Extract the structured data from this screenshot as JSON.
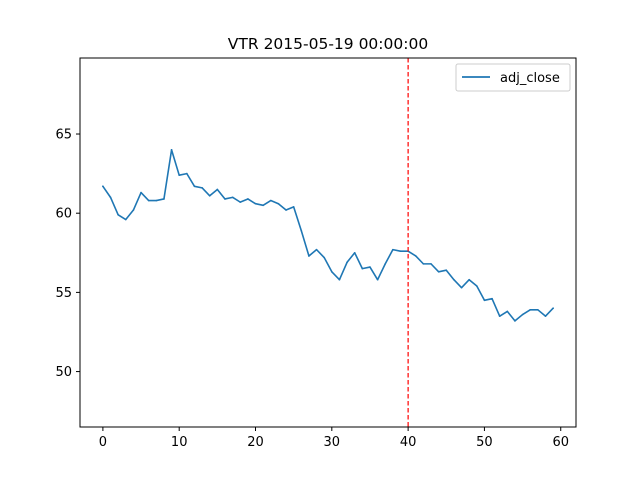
{
  "chart_data": {
    "type": "line",
    "title": "VTR 2015-05-19 00:00:00",
    "xlabel": "",
    "ylabel": "",
    "xlim": [
      -3,
      62
    ],
    "ylim": [
      46.5,
      69.8
    ],
    "xticks": [
      0,
      10,
      20,
      30,
      40,
      50,
      60
    ],
    "yticks": [
      50,
      55,
      60,
      65
    ],
    "xtick_labels": [
      "0",
      "10",
      "20",
      "30",
      "40",
      "50",
      "60"
    ],
    "ytick_labels": [
      "50",
      "55",
      "60",
      "65"
    ],
    "grid": false,
    "legend_position": "top-right",
    "series": [
      {
        "name": "adj_close",
        "color": "#1f77b4",
        "x": [
          0,
          1,
          2,
          3,
          4,
          5,
          6,
          7,
          8,
          9,
          10,
          11,
          12,
          13,
          14,
          15,
          16,
          17,
          18,
          19,
          20,
          21,
          22,
          23,
          24,
          25,
          26,
          27,
          28,
          29,
          30,
          31,
          32,
          33,
          34,
          35,
          36,
          37,
          38,
          39,
          40,
          41,
          42,
          43,
          44,
          45,
          46,
          47,
          48,
          49,
          50,
          51,
          52,
          53,
          54,
          55,
          56,
          57,
          58,
          59
        ],
        "values": [
          61.7,
          61.0,
          59.9,
          59.6,
          60.2,
          61.3,
          60.8,
          60.8,
          60.9,
          64.0,
          62.4,
          62.5,
          61.7,
          61.6,
          61.1,
          61.5,
          60.9,
          61.0,
          60.7,
          60.9,
          60.6,
          60.5,
          60.8,
          60.6,
          60.2,
          60.4,
          58.9,
          57.3,
          57.7,
          57.2,
          56.3,
          55.8,
          56.9,
          57.5,
          56.5,
          56.6,
          55.8,
          56.8,
          57.7,
          57.6,
          57.6,
          57.3,
          56.8,
          56.8,
          56.3,
          56.4,
          55.8,
          55.3,
          55.8,
          55.4,
          54.5,
          54.6,
          53.5,
          53.8,
          53.2,
          53.6,
          53.9,
          53.9,
          53.5,
          54.0
        ]
      }
    ],
    "vline": {
      "x": 40,
      "color": "#ff0000",
      "style": "dashed"
    }
  }
}
